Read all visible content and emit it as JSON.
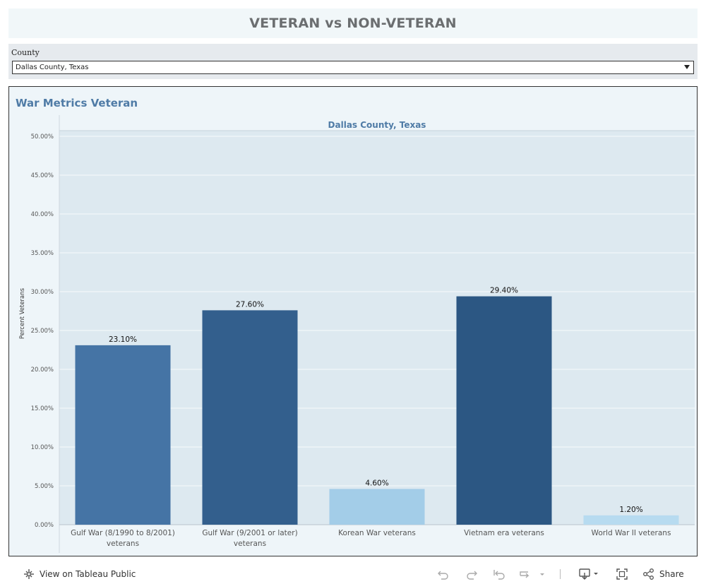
{
  "header": {
    "title": "VETERAN vs NON-VETERAN"
  },
  "filter": {
    "label": "County",
    "selected": "Dallas County, Texas"
  },
  "chart_panel": {
    "title": "War Metrics Veteran"
  },
  "chart_data": {
    "type": "bar",
    "title": "War Metrics Veteran",
    "subtitle": "Dallas County, Texas",
    "ylabel": "Percent Veterans",
    "xlabel": "",
    "ylim": [
      0,
      50
    ],
    "yticks": [
      0,
      5,
      10,
      15,
      20,
      25,
      30,
      35,
      40,
      45,
      50
    ],
    "ytick_labels": [
      "0.00%",
      "5.00%",
      "10.00%",
      "15.00%",
      "20.00%",
      "25.00%",
      "30.00%",
      "35.00%",
      "40.00%",
      "45.00%",
      "50.00%"
    ],
    "categories": [
      [
        "Gulf War (8/1990 to 8/2001)",
        "veterans"
      ],
      [
        "Gulf War (9/2001 or later)",
        "veterans"
      ],
      [
        "Korean War veterans"
      ],
      [
        "Vietnam era veterans"
      ],
      [
        "World War II veterans"
      ]
    ],
    "values": [
      23.1,
      27.6,
      4.6,
      29.4,
      1.2
    ],
    "value_labels": [
      "23.10%",
      "27.60%",
      "4.60%",
      "29.40%",
      "1.20%"
    ],
    "bar_colors": [
      "#4574a5",
      "#335f8d",
      "#a3cde8",
      "#2c5783",
      "#b7dbf0"
    ],
    "grid": true
  },
  "footer": {
    "view_label": "View on Tableau Public",
    "share_label": "Share"
  },
  "colors": {
    "accent": "#4f7ba6",
    "plot_bg": "#dde9f0",
    "panel_bg": "#eef5f9"
  },
  "icons": [
    "tableau-logo-icon",
    "undo-icon",
    "redo-icon",
    "revert-icon",
    "refresh-icon",
    "download-icon",
    "fullscreen-icon",
    "share-icon"
  ]
}
